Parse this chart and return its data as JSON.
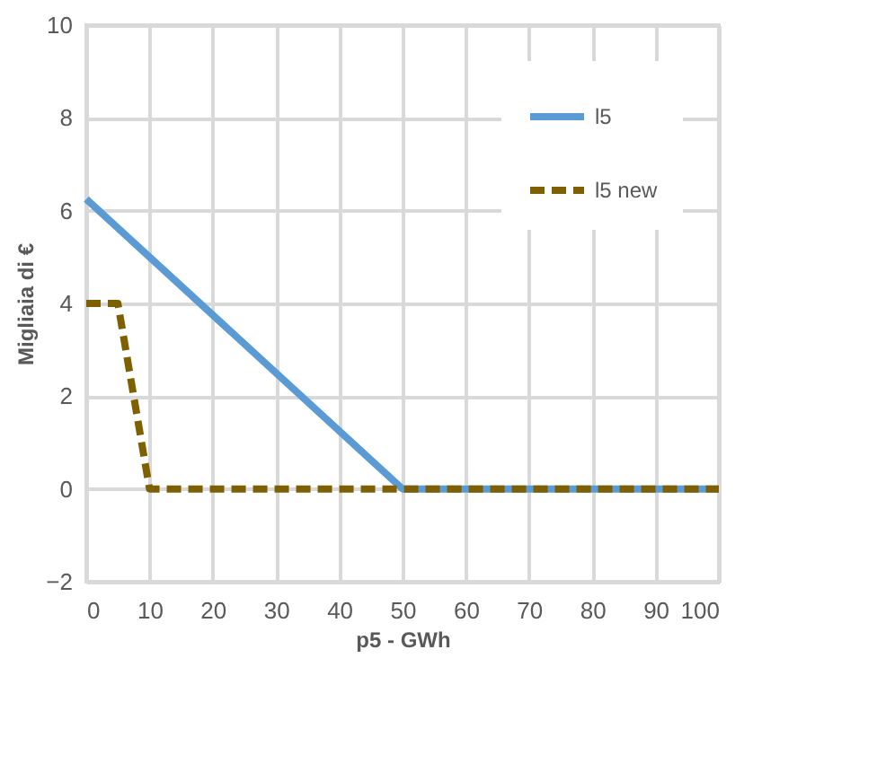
{
  "chart_data": {
    "type": "line",
    "xlabel": "p5 - GWh",
    "ylabel": "Migliaia di €",
    "xlim": [
      0,
      100
    ],
    "xticks": [
      0,
      10,
      20,
      30,
      40,
      50,
      60,
      70,
      80,
      90,
      100
    ],
    "ylim": [
      -2,
      10
    ],
    "yticks": [
      -2,
      0,
      2,
      4,
      6,
      8,
      10
    ],
    "grid": true,
    "legend": "top right",
    "marker": "none",
    "series": [
      {
        "name": "l5",
        "color": "#5b9bd5",
        "line_style": "solid",
        "x": [
          0,
          50,
          100
        ],
        "values": [
          6.25,
          0,
          0
        ]
      },
      {
        "name": "l5 new",
        "color": "#7f6000",
        "line_style": "dashed",
        "x": [
          0,
          5,
          10,
          100
        ],
        "values": [
          4,
          4,
          0,
          0
        ]
      }
    ]
  }
}
